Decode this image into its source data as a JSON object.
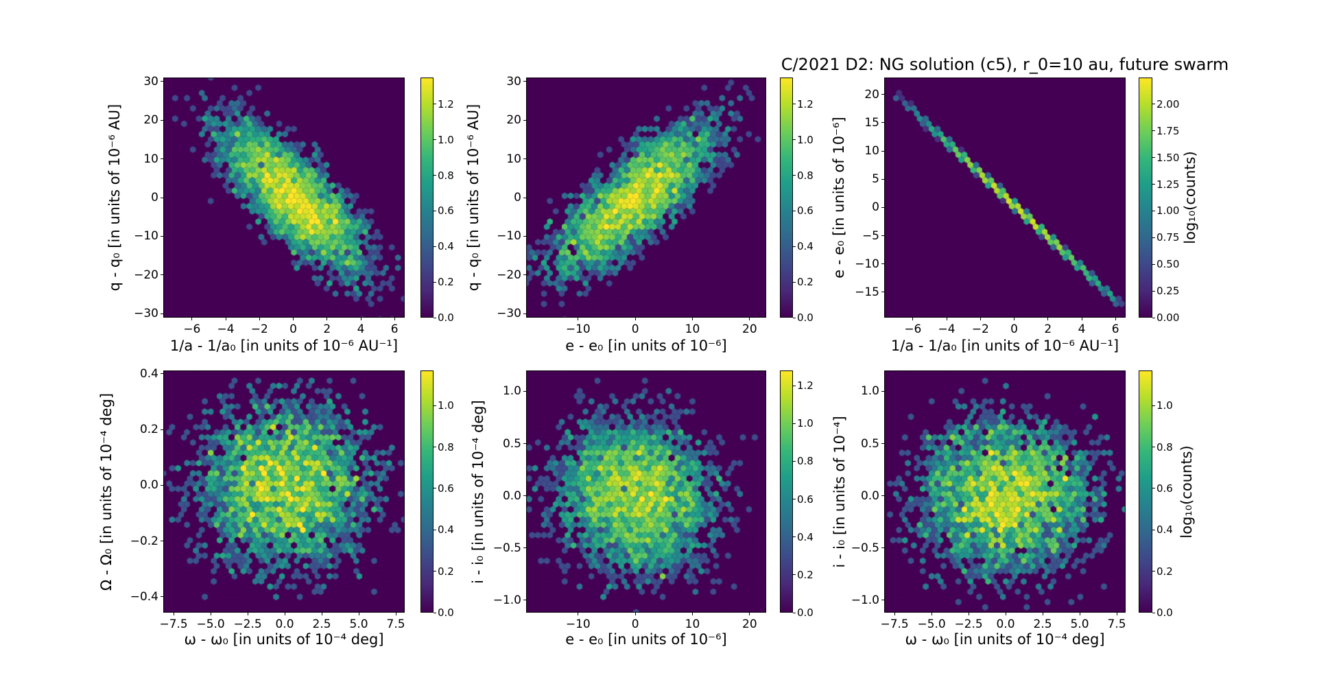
{
  "figure": {
    "title": "C/2021 D2: NG solution (c5), r_0=10 au, future swarm",
    "background": "#ffffff",
    "colormap": "viridis",
    "colormap_hex": [
      "#440154",
      "#482878",
      "#3e4989",
      "#31688e",
      "#26828e",
      "#1f9e89",
      "#35b779",
      "#6ece58",
      "#b5de2b",
      "#fde725"
    ]
  },
  "chart_data": [
    {
      "type": "hexbin",
      "position": {
        "row": 0,
        "col": 0
      },
      "xlabel": "1/a - 1/a₀ [in units of 10⁻⁶ AU⁻¹]",
      "ylabel": "q - q₀ [in units of 10⁻⁶ AU]",
      "xlim": [
        -7.7,
        6.6
      ],
      "ylim": [
        -31,
        31
      ],
      "xticks": {
        "values": [
          -6,
          -4,
          -2,
          0,
          2,
          4,
          6
        ],
        "labels": [
          "−6",
          "−4",
          "−2",
          "0",
          "2",
          "4",
          "6"
        ]
      },
      "yticks": {
        "values": [
          30,
          20,
          10,
          0,
          -10,
          -20,
          -30
        ],
        "labels": [
          "30",
          "20",
          "10",
          "0",
          "−10",
          "−20",
          "−30"
        ]
      },
      "colorbar": {
        "vmax": 1.35,
        "label": null,
        "ticks": {
          "values": [
            1.2,
            1.0,
            0.8,
            0.6,
            0.4,
            0.2,
            0.0
          ],
          "labels": [
            "1.2",
            "1.0",
            "0.8",
            "0.6",
            "0.4",
            "0.2",
            "0.0"
          ]
        }
      },
      "distribution": {
        "kind": "bivariate_normal",
        "n": 4500,
        "mean": [
          0,
          0
        ],
        "sigma": [
          2.4,
          11
        ],
        "corr": -0.78,
        "seed": 11
      }
    },
    {
      "type": "hexbin",
      "position": {
        "row": 0,
        "col": 1
      },
      "xlabel": "e - e₀ [in units of 10⁻⁶]",
      "ylabel": "q - q₀ [in units of 10⁻⁶ AU]",
      "xlim": [
        -19.1,
        22.9
      ],
      "ylim": [
        -31,
        31
      ],
      "xticks": {
        "values": [
          -10,
          0,
          10,
          20
        ],
        "labels": [
          "−10",
          "0",
          "10",
          "20"
        ]
      },
      "yticks": {
        "values": [
          30,
          20,
          10,
          0,
          -10,
          -20,
          -30
        ],
        "labels": [
          "30",
          "20",
          "10",
          "0",
          "−10",
          "−20",
          "−30"
        ]
      },
      "colorbar": {
        "vmax": 1.35,
        "label": null,
        "ticks": {
          "values": [
            1.2,
            1.0,
            0.8,
            0.6,
            0.4,
            0.2,
            0.0
          ],
          "labels": [
            "1.2",
            "1.0",
            "0.8",
            "0.6",
            "0.4",
            "0.2",
            "0.0"
          ]
        }
      },
      "distribution": {
        "kind": "bivariate_normal",
        "n": 4500,
        "mean": [
          0,
          0
        ],
        "sigma": [
          7.8,
          11
        ],
        "corr": 0.78,
        "seed": 22
      }
    },
    {
      "type": "hexbin",
      "position": {
        "row": 0,
        "col": 2
      },
      "xlabel": "1/a - 1/a₀ [in units of 10⁻⁶ AU⁻¹]",
      "ylabel": "e - e₀ [in units of 10⁻⁶]",
      "xlim": [
        -7.7,
        6.6
      ],
      "ylim": [
        -19.5,
        23
      ],
      "xticks": {
        "values": [
          -6,
          -4,
          -2,
          0,
          2,
          4,
          6
        ],
        "labels": [
          "−6",
          "−4",
          "−2",
          "0",
          "2",
          "4",
          "6"
        ]
      },
      "yticks": {
        "values": [
          20,
          15,
          10,
          5,
          0,
          -5,
          -10,
          -15
        ],
        "labels": [
          "20",
          "15",
          "10",
          "5",
          "0",
          "−5",
          "−10",
          "−15"
        ]
      },
      "colorbar": {
        "vmax": 2.25,
        "label": "log₁₀(counts)",
        "ticks": {
          "values": [
            2.0,
            1.75,
            1.5,
            1.25,
            1.0,
            0.75,
            0.5,
            0.25,
            0.0
          ],
          "labels": [
            "2.00",
            "1.75",
            "1.50",
            "1.25",
            "1.00",
            "0.75",
            "0.50",
            "0.25",
            "0.00"
          ]
        }
      },
      "distribution": {
        "kind": "line",
        "n": 3000,
        "sigma_x": 2.7,
        "x_range": [
          -7,
          6.5
        ],
        "slope": -2.8,
        "intercept": 0.4,
        "jitter": 0.18,
        "seed": 33
      }
    },
    {
      "type": "hexbin",
      "position": {
        "row": 1,
        "col": 0
      },
      "xlabel": "ω - ω₀ [in units of 10⁻⁴ deg]",
      "ylabel": "Ω - Ω₀ [in units of 10⁻⁴ deg]",
      "xlim": [
        -8.2,
        8.1
      ],
      "ylim": [
        -0.457,
        0.412
      ],
      "xticks": {
        "values": [
          -7.5,
          -5.0,
          -2.5,
          0.0,
          2.5,
          5.0,
          7.5
        ],
        "labels": [
          "−7.5",
          "−5.0",
          "−2.5",
          "0.0",
          "2.5",
          "5.0",
          "7.5"
        ]
      },
      "yticks": {
        "values": [
          0.4,
          0.2,
          0.0,
          -0.2,
          -0.4
        ],
        "labels": [
          "0.4",
          "0.2",
          "0.0",
          "−0.2",
          "−0.4"
        ]
      },
      "colorbar": {
        "vmax": 1.17,
        "label": null,
        "ticks": {
          "values": [
            1.0,
            0.8,
            0.6,
            0.4,
            0.2,
            0.0
          ],
          "labels": [
            "1.0",
            "0.8",
            "0.6",
            "0.4",
            "0.2",
            "0.0"
          ]
        }
      },
      "distribution": {
        "kind": "bivariate_normal",
        "n": 5000,
        "mean": [
          0,
          0
        ],
        "sigma": [
          3.3,
          0.165
        ],
        "corr": 0.0,
        "seed": 44
      }
    },
    {
      "type": "hexbin",
      "position": {
        "row": 1,
        "col": 1
      },
      "xlabel": "e - e₀ [in units of 10⁻⁶]",
      "ylabel": "i - i₀ [in units of 10⁻⁴ deg]",
      "xlim": [
        -19.1,
        22.9
      ],
      "ylim": [
        -1.12,
        1.2
      ],
      "xticks": {
        "values": [
          -10,
          0,
          10,
          20
        ],
        "labels": [
          "−10",
          "0",
          "10",
          "20"
        ]
      },
      "yticks": {
        "values": [
          1.0,
          0.5,
          0.0,
          -0.5,
          -1.0
        ],
        "labels": [
          "1.0",
          "0.5",
          "0.0",
          "−0.5",
          "−1.0"
        ]
      },
      "colorbar": {
        "vmax": 1.28,
        "label": null,
        "ticks": {
          "values": [
            1.2,
            1.0,
            0.8,
            0.6,
            0.4,
            0.2,
            0.0
          ],
          "labels": [
            "1.2",
            "1.0",
            "0.8",
            "0.6",
            "0.4",
            "0.2",
            "0.0"
          ]
        }
      },
      "distribution": {
        "kind": "bivariate_normal",
        "n": 5200,
        "mean": [
          0,
          0
        ],
        "sigma": [
          7.8,
          0.42
        ],
        "corr": -0.12,
        "seed": 55
      }
    },
    {
      "type": "hexbin",
      "position": {
        "row": 1,
        "col": 2
      },
      "xlabel": "ω - ω₀ [in units of 10⁻⁴ deg]",
      "ylabel": "i - i₀ [in units of 10⁻⁴]",
      "xlim": [
        -8.2,
        8.1
      ],
      "ylim": [
        -1.12,
        1.2
      ],
      "xticks": {
        "values": [
          -7.5,
          -5.0,
          -2.5,
          0.0,
          2.5,
          5.0,
          7.5
        ],
        "labels": [
          "−7.5",
          "−5.0",
          "−2.5",
          "0.0",
          "2.5",
          "5.0",
          "7.5"
        ]
      },
      "yticks": {
        "values": [
          1.0,
          0.5,
          0.0,
          -0.5,
          -1.0
        ],
        "labels": [
          "1.0",
          "0.5",
          "0.0",
          "−0.5",
          "−1.0"
        ]
      },
      "colorbar": {
        "vmax": 1.17,
        "label": "log₁₀(counts)",
        "ticks": {
          "values": [
            1.0,
            0.8,
            0.6,
            0.4,
            0.2,
            0.0
          ],
          "labels": [
            "1.0",
            "0.8",
            "0.6",
            "0.4",
            "0.2",
            "0.0"
          ]
        }
      },
      "distribution": {
        "kind": "bivariate_normal",
        "n": 5000,
        "mean": [
          0,
          0
        ],
        "sigma": [
          3.3,
          0.42
        ],
        "corr": 0.0,
        "seed": 66
      }
    }
  ]
}
